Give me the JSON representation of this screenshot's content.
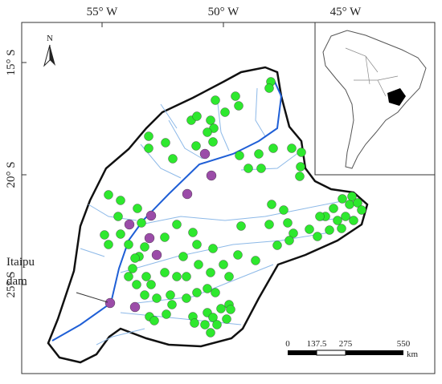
{
  "map": {
    "north": "N",
    "longitudes": [
      "55° W",
      "50° W",
      "45° W"
    ],
    "latitudes": [
      "15° S",
      "20° S",
      "25° S"
    ],
    "annotation": [
      "Itaipu",
      "dam"
    ],
    "scale": {
      "labels": [
        "0",
        "137.5",
        "275",
        "550"
      ],
      "unit": "km"
    }
  }
}
